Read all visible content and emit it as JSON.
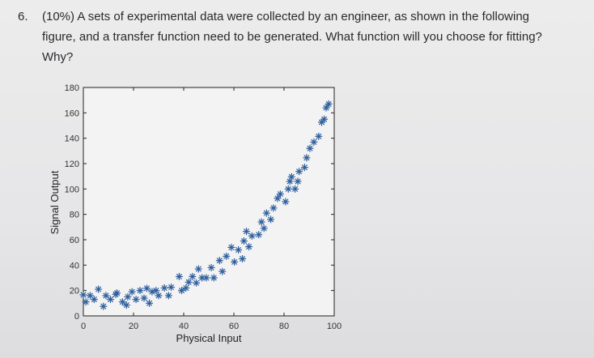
{
  "question": {
    "number": "6.",
    "lines": [
      "(10%) A sets of experimental data were collected by an engineer, as shown in the following",
      "figure, and a transfer function need to be generated. What function will you choose for fitting?",
      "Why?"
    ]
  },
  "chart_data": {
    "type": "scatter",
    "title": "",
    "xlabel": "Physical Input",
    "ylabel": "Signal Output",
    "xlim": [
      0,
      100
    ],
    "ylim": [
      0,
      180
    ],
    "xticks": [
      0,
      20,
      40,
      60,
      80,
      100
    ],
    "yticks": [
      0,
      20,
      40,
      60,
      80,
      100,
      120,
      140,
      160,
      180
    ],
    "grid": false,
    "marker": "asterisk",
    "color": "#2e5f9e",
    "points": [
      [
        0,
        16.6
      ],
      [
        1,
        11
      ],
      [
        2.7,
        16
      ],
      [
        4.3,
        13
      ],
      [
        6,
        21
      ],
      [
        8,
        7.5
      ],
      [
        9,
        16
      ],
      [
        10.8,
        13
      ],
      [
        12.9,
        17
      ],
      [
        13.4,
        18
      ],
      [
        15.6,
        11
      ],
      [
        17.2,
        8.5
      ],
      [
        17.7,
        15
      ],
      [
        19.4,
        19
      ],
      [
        21,
        13
      ],
      [
        22.6,
        20
      ],
      [
        24.2,
        14
      ],
      [
        25.3,
        21.7
      ],
      [
        26.3,
        10
      ],
      [
        27.4,
        19
      ],
      [
        29,
        20
      ],
      [
        30,
        16
      ],
      [
        32.3,
        22
      ],
      [
        34,
        16
      ],
      [
        35,
        22.6
      ],
      [
        38.2,
        31
      ],
      [
        39.2,
        20
      ],
      [
        40.9,
        22
      ],
      [
        42,
        26.6
      ],
      [
        43.5,
        31
      ],
      [
        45,
        26
      ],
      [
        45.9,
        37
      ],
      [
        47.3,
        30
      ],
      [
        49,
        30
      ],
      [
        51,
        38
      ],
      [
        52,
        30
      ],
      [
        54.3,
        43.6
      ],
      [
        55.4,
        35
      ],
      [
        57,
        47
      ],
      [
        59,
        54
      ],
      [
        60.2,
        42.5
      ],
      [
        61.8,
        52
      ],
      [
        63.4,
        45
      ],
      [
        64,
        59
      ],
      [
        65,
        66.6
      ],
      [
        66,
        54.5
      ],
      [
        67.2,
        63
      ],
      [
        69.9,
        64
      ],
      [
        71,
        74
      ],
      [
        72,
        69
      ],
      [
        73,
        81
      ],
      [
        74.7,
        76
      ],
      [
        75.8,
        85
      ],
      [
        77.4,
        92.6
      ],
      [
        78.5,
        96
      ],
      [
        80.6,
        90
      ],
      [
        81.7,
        100
      ],
      [
        82.3,
        106
      ],
      [
        83,
        109.6
      ],
      [
        84.4,
        100
      ],
      [
        85.5,
        106
      ],
      [
        86,
        113.8
      ],
      [
        88.2,
        117
      ],
      [
        89,
        124.6
      ],
      [
        90.3,
        132
      ],
      [
        91.9,
        137
      ],
      [
        93.8,
        141.5
      ],
      [
        95,
        152.6
      ],
      [
        96,
        155
      ],
      [
        96.8,
        164
      ],
      [
        97.8,
        167
      ]
    ]
  }
}
